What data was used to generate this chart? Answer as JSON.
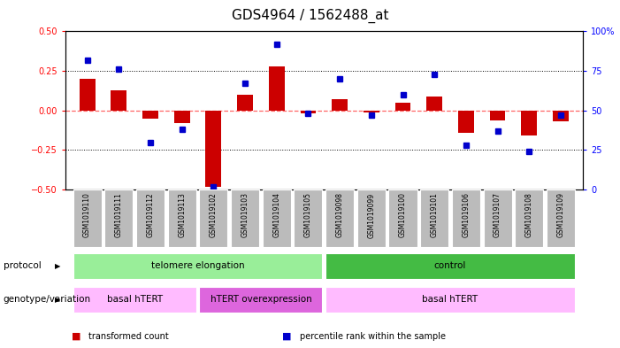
{
  "title": "GDS4964 / 1562488_at",
  "samples": [
    "GSM1019110",
    "GSM1019111",
    "GSM1019112",
    "GSM1019113",
    "GSM1019102",
    "GSM1019103",
    "GSM1019104",
    "GSM1019105",
    "GSM1019098",
    "GSM1019099",
    "GSM1019100",
    "GSM1019101",
    "GSM1019106",
    "GSM1019107",
    "GSM1019108",
    "GSM1019109"
  ],
  "bar_values": [
    0.2,
    0.13,
    -0.05,
    -0.08,
    -0.48,
    0.1,
    0.28,
    -0.02,
    0.07,
    -0.01,
    0.05,
    0.09,
    -0.14,
    -0.06,
    -0.16,
    -0.07
  ],
  "blue_values": [
    82,
    76,
    30,
    38,
    2,
    67,
    92,
    48,
    70,
    47,
    60,
    73,
    28,
    37,
    24,
    47
  ],
  "ylim_left": [
    -0.5,
    0.5
  ],
  "ylim_right": [
    0,
    100
  ],
  "yticks_left": [
    -0.5,
    -0.25,
    0.0,
    0.25,
    0.5
  ],
  "yticks_right": [
    0,
    25,
    50,
    75,
    100
  ],
  "ytick_labels_right": [
    "0",
    "25",
    "50",
    "75",
    "100%"
  ],
  "bar_color": "#cc0000",
  "blue_color": "#0000cc",
  "zero_line_color": "#ff6666",
  "protocol_groups": [
    {
      "label": "telomere elongation",
      "start": 0,
      "end": 7,
      "color": "#99ee99"
    },
    {
      "label": "control",
      "start": 8,
      "end": 15,
      "color": "#44bb44"
    }
  ],
  "genotype_groups": [
    {
      "label": "basal hTERT",
      "start": 0,
      "end": 3,
      "color": "#ffbbff"
    },
    {
      "label": "hTERT overexpression",
      "start": 4,
      "end": 7,
      "color": "#dd66dd"
    },
    {
      "label": "basal hTERT",
      "start": 8,
      "end": 15,
      "color": "#ffbbff"
    }
  ],
  "legend_items": [
    {
      "label": "transformed count",
      "color": "#cc0000"
    },
    {
      "label": "percentile rank within the sample",
      "color": "#0000cc"
    }
  ],
  "protocol_label": "protocol",
  "genotype_label": "genotype/variation",
  "bg_color": "#ffffff",
  "tick_label_bg": "#bbbbbb",
  "title_fontsize": 11,
  "tick_fontsize": 7,
  "label_fontsize": 7.5,
  "row_fontsize": 7.5
}
